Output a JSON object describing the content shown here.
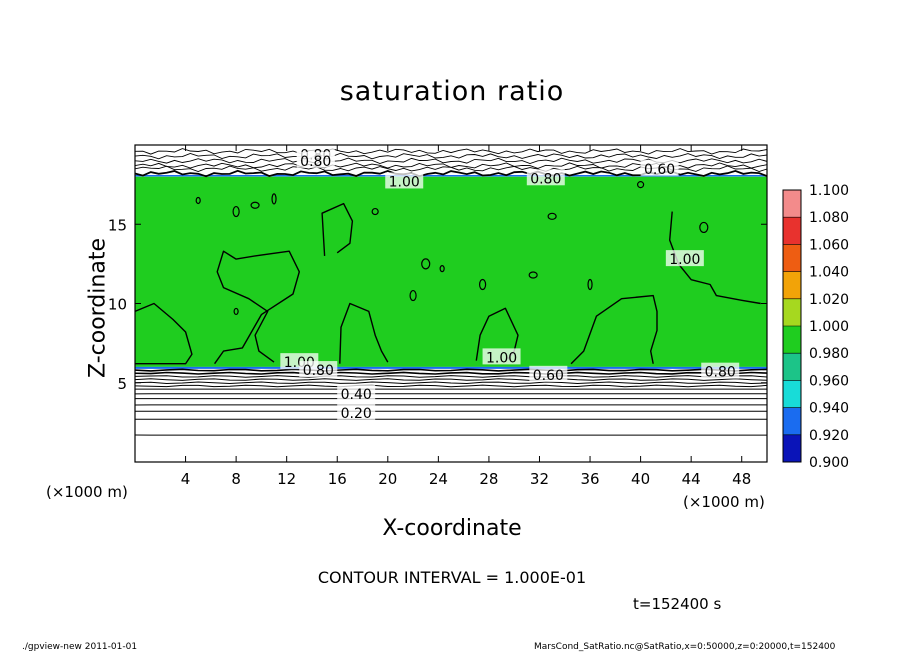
{
  "chart_data": {
    "type": "heatmap",
    "title": "saturation ratio",
    "xlabel": "X-coordinate",
    "ylabel": "Z-coordinate",
    "x_unit_label_left": "(×1000 m)",
    "x_unit_label_right": "(×1000 m)",
    "xlim": [
      0,
      50
    ],
    "ylim": [
      0,
      20
    ],
    "x_ticks": [
      4,
      8,
      12,
      16,
      20,
      24,
      28,
      32,
      36,
      40,
      44,
      48
    ],
    "y_ticks": [
      5,
      10,
      15
    ],
    "colorbar": {
      "levels": [
        "1.100",
        "1.080",
        "1.060",
        "1.040",
        "1.020",
        "1.000",
        "0.980",
        "0.960",
        "0.940",
        "0.920",
        "0.900"
      ],
      "colors": [
        "#f38b8b",
        "#e8322e",
        "#ee5d12",
        "#f2a308",
        "#a6d81f",
        "#1fcd1f",
        "#1cc488",
        "#18dcd8",
        "#1a6cf0",
        "#0a14b8",
        "#6a1fa2"
      ]
    },
    "fields": {
      "saturated_layer": {
        "z_bottom": 6.0,
        "z_top": 18.0,
        "value": 1.0,
        "color": "#1fcd1f"
      },
      "upper_unsaturated": {
        "z_bottom": 18.0,
        "z_top": 20.0
      },
      "lower_unsaturated": {
        "z_bottom": 0,
        "z_top": 6.0
      }
    },
    "contour_lines_lower_z": [
      5.8,
      5.6,
      5.4,
      5.2,
      5.0,
      4.8,
      4.6,
      4.3,
      4.0,
      3.6,
      3.2,
      2.7,
      1.7
    ],
    "contour_lines_upper_z": [
      18.2,
      18.5,
      18.7,
      19.0,
      19.3,
      19.6
    ],
    "contour_labels": [
      {
        "text": "0.80",
        "x": 14.3,
        "z": 19.4
      },
      {
        "text": "0.80",
        "x": 14.3,
        "z": 19.0
      },
      {
        "text": "1.00",
        "x": 21.3,
        "z": 17.7
      },
      {
        "text": "0.80",
        "x": 32.5,
        "z": 17.9
      },
      {
        "text": "0.60",
        "x": 41.5,
        "z": 18.5
      },
      {
        "text": "1.00",
        "x": 43.5,
        "z": 12.8
      },
      {
        "text": "1.00",
        "x": 13.0,
        "z": 6.3
      },
      {
        "text": "0.80",
        "x": 14.5,
        "z": 5.8
      },
      {
        "text": "1.00",
        "x": 29.0,
        "z": 6.6
      },
      {
        "text": "0.60",
        "x": 32.7,
        "z": 5.5
      },
      {
        "text": "0.80",
        "x": 46.3,
        "z": 5.7
      },
      {
        "text": "0.40",
        "x": 17.5,
        "z": 4.3
      },
      {
        "text": "0.20",
        "x": 17.5,
        "z": 3.1
      }
    ],
    "cloud_boundary_contours": [
      [
        [
          0,
          9.5
        ],
        [
          1.5,
          10.0
        ],
        [
          3.0,
          9.0
        ],
        [
          4.0,
          8.2
        ],
        [
          4.5,
          6.8
        ],
        [
          4.0,
          6.2
        ],
        [
          0,
          6.2
        ]
      ],
      [
        [
          6.3,
          6.2
        ],
        [
          7.0,
          7.0
        ],
        [
          8.5,
          7.2
        ],
        [
          10.0,
          9.3
        ],
        [
          12.5,
          10.6
        ],
        [
          13.0,
          12.0
        ],
        [
          12.2,
          13.3
        ],
        [
          9.5,
          13.0
        ],
        [
          8.0,
          12.8
        ],
        [
          7.0,
          13.3
        ],
        [
          6.5,
          12.0
        ],
        [
          7.0,
          11.0
        ],
        [
          9.0,
          10.3
        ],
        [
          10.5,
          9.5
        ],
        [
          9.5,
          8.0
        ],
        [
          9.8,
          7.0
        ],
        [
          11.0,
          6.3
        ]
      ],
      [
        [
          16.2,
          6.2
        ],
        [
          16.3,
          8.5
        ],
        [
          17.0,
          10.0
        ],
        [
          18.5,
          9.5
        ],
        [
          19.0,
          8.0
        ],
        [
          19.5,
          7.0
        ],
        [
          20.0,
          6.3
        ]
      ],
      [
        [
          27.0,
          6.4
        ],
        [
          27.3,
          8.0
        ],
        [
          28.0,
          9.2
        ],
        [
          29.3,
          9.7
        ],
        [
          30.3,
          8.0
        ],
        [
          30.0,
          7.0
        ],
        [
          29.5,
          6.5
        ]
      ],
      [
        [
          34.5,
          6.2
        ],
        [
          35.5,
          7.0
        ],
        [
          36.5,
          9.2
        ],
        [
          38.5,
          10.3
        ],
        [
          41.0,
          10.5
        ],
        [
          41.3,
          9.5
        ],
        [
          41.3,
          8.3
        ],
        [
          40.8,
          7.0
        ],
        [
          41.0,
          6.2
        ]
      ],
      [
        [
          42.5,
          15.8
        ],
        [
          42.3,
          14.0
        ],
        [
          43.0,
          12.5
        ],
        [
          44.0,
          11.5
        ],
        [
          45.5,
          11.2
        ],
        [
          46.0,
          10.5
        ],
        [
          48.0,
          10.2
        ],
        [
          49.5,
          10.0
        ]
      ],
      [
        [
          15.0,
          13.0
        ],
        [
          14.8,
          15.7
        ],
        [
          16.5,
          16.3
        ],
        [
          17.2,
          15.2
        ],
        [
          17.0,
          13.8
        ],
        [
          16.0,
          13.2
        ]
      ]
    ],
    "contour_interval_label": "CONTOUR INTERVAL = 1.000E-01",
    "time_label": "t=152400 s"
  },
  "footer": {
    "left": "./gpview-new   2011-01-01",
    "right": "MarsCond_SatRatio.nc@SatRatio,x=0:50000,z=0:20000,t=152400"
  }
}
